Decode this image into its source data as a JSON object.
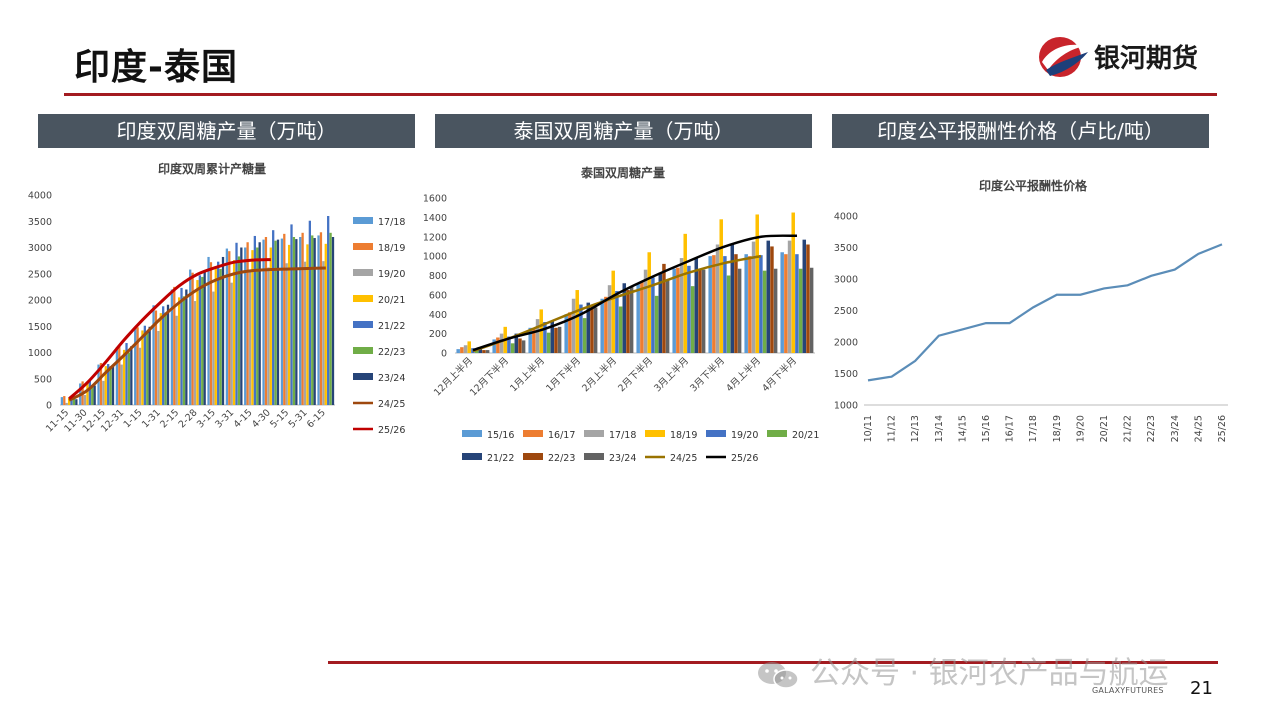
{
  "slide": {
    "title": "印度-泰国",
    "page_number": "21"
  },
  "logo": {
    "text": "银河期货",
    "small_text": "GALAXYFUTURES"
  },
  "watermark": {
    "text": "公众号 · 银河农产品与航运"
  },
  "panels": [
    {
      "header": "印度双周糖产量（万吨）"
    },
    {
      "header": "泰国双周糖产量（万吨）"
    },
    {
      "header": "印度公平报酬性价格（卢比/吨）"
    }
  ],
  "colors": {
    "accent_red": "#a31b20",
    "header_bg": "#4a5560"
  },
  "chart_data": [
    {
      "type": "bar",
      "title": "印度双周累计产糖量",
      "categories": [
        "11-15",
        "11-30",
        "12-15",
        "12-31",
        "1-15",
        "1-31",
        "2-15",
        "2-28",
        "3-15",
        "3-31",
        "4-15",
        "4-30",
        "5-15",
        "5-31",
        "6-15"
      ],
      "yticks": [
        "0",
        "500",
        "1000",
        "1500",
        "2000",
        "2500",
        "3000",
        "3500",
        "4000"
      ],
      "ylim": [
        0,
        4000
      ],
      "legend_position": "right",
      "series": [
        {
          "name": "17/18",
          "color": "#5b9bd5",
          "kind": "bar",
          "values": [
            150,
            410,
            770,
            1100,
            1470,
            1900,
            2200,
            2580,
            2820,
            2980,
            3000,
            3150,
            3170,
            3200,
            3230
          ]
        },
        {
          "name": "18/19",
          "color": "#ed7d31",
          "kind": "bar",
          "values": [
            170,
            450,
            800,
            1120,
            1480,
            1800,
            2250,
            2520,
            2720,
            2930,
            3100,
            3200,
            3260,
            3280,
            3290
          ]
        },
        {
          "name": "19/20",
          "color": "#a5a5a5",
          "kind": "bar",
          "values": [
            40,
            190,
            460,
            770,
            1090,
            1410,
            1700,
            1980,
            2160,
            2330,
            2550,
            2620,
            2700,
            2730,
            2740
          ]
        },
        {
          "name": "20/21",
          "color": "#ffc000",
          "kind": "bar",
          "values": [
            140,
            420,
            740,
            1050,
            1420,
            1750,
            2050,
            2380,
            2640,
            2760,
            2950,
            3000,
            3050,
            3060,
            3070
          ]
        },
        {
          "name": "21/22",
          "color": "#4472c4",
          "kind": "bar",
          "values": [
            160,
            470,
            780,
            1180,
            1510,
            1880,
            2230,
            2470,
            2730,
            3090,
            3220,
            3330,
            3440,
            3510,
            3600
          ]
        },
        {
          "name": "22/23",
          "color": "#70ad47",
          "kind": "bar",
          "values": [
            130,
            380,
            740,
            1000,
            1390,
            1760,
            2070,
            2440,
            2590,
            2830,
            3000,
            3130,
            3200,
            3230,
            3280
          ]
        },
        {
          "name": "23/24",
          "color": "#264478",
          "kind": "bar",
          "values": [
            110,
            370,
            740,
            1120,
            1490,
            1910,
            2200,
            2560,
            2820,
            3000,
            3100,
            3150,
            3160,
            3180,
            3200
          ]
        },
        {
          "name": "24/25",
          "color": "#9e480e",
          "kind": "line",
          "values": [
            90,
            280,
            620,
            950,
            1300,
            1650,
            1950,
            2200,
            2380,
            2500,
            2560,
            2580,
            2590,
            2600,
            2610
          ]
        },
        {
          "name": "25/26",
          "color": "#c00000",
          "kind": "line",
          "values": [
            120,
            430,
            820,
            1240,
            1620,
            1960,
            2270,
            2490,
            2620,
            2720,
            2760,
            2770,
            null,
            null,
            null
          ]
        }
      ]
    },
    {
      "type": "bar",
      "title": "泰国双周糖产量",
      "categories": [
        "12月上半月",
        "12月下半月",
        "1月上半月",
        "1月下半月",
        "2月上半月",
        "2月下半月",
        "3月上半月",
        "3月下半月",
        "4月上半月",
        "4月下半月"
      ],
      "yticks": [
        "0",
        "200",
        "400",
        "600",
        "800",
        "1000",
        "1200",
        "1400",
        "1600"
      ],
      "ylim": [
        0,
        1600
      ],
      "legend_position": "bottom",
      "series": [
        {
          "name": "15/16",
          "color": "#5b9bd5",
          "kind": "bar",
          "values": [
            40,
            140,
            260,
            400,
            560,
            720,
            870,
            1000,
            1020,
            1040
          ]
        },
        {
          "name": "16/17",
          "color": "#ed7d31",
          "kind": "bar",
          "values": [
            60,
            160,
            260,
            420,
            580,
            740,
            880,
            1010,
            1000,
            1020
          ]
        },
        {
          "name": "17/18",
          "color": "#a5a5a5",
          "kind": "bar",
          "values": [
            80,
            200,
            350,
            560,
            700,
            860,
            980,
            1120,
            1150,
            1160
          ]
        },
        {
          "name": "18/19",
          "color": "#ffc000",
          "kind": "bar",
          "values": [
            120,
            270,
            450,
            650,
            850,
            1040,
            1230,
            1380,
            1430,
            1450
          ]
        },
        {
          "name": "19/20",
          "color": "#4472c4",
          "kind": "bar",
          "values": [
            50,
            170,
            320,
            500,
            640,
            780,
            900,
            1000,
            1010,
            1020
          ]
        },
        {
          "name": "20/21",
          "color": "#70ad47",
          "kind": "bar",
          "values": [
            30,
            100,
            210,
            360,
            480,
            590,
            690,
            800,
            850,
            870
          ]
        },
        {
          "name": "21/22",
          "color": "#264478",
          "kind": "bar",
          "values": [
            60,
            200,
            330,
            520,
            720,
            830,
            980,
            1130,
            1160,
            1170
          ]
        },
        {
          "name": "22/23",
          "color": "#9e480e",
          "kind": "bar",
          "values": [
            30,
            150,
            260,
            480,
            650,
            920,
            860,
            1020,
            1100,
            1120
          ]
        },
        {
          "name": "23/24",
          "color": "#636363",
          "kind": "bar",
          "values": [
            30,
            130,
            270,
            470,
            690,
            750,
            860,
            870,
            870,
            880
          ]
        },
        {
          "name": "24/25",
          "color": "#997300",
          "kind": "line",
          "values": [
            20,
            150,
            300,
            450,
            580,
            700,
            830,
            930,
            1000,
            null
          ]
        },
        {
          "name": "25/26",
          "color": "#000000",
          "kind": "line",
          "values": [
            30,
            150,
            250,
            400,
            610,
            790,
            950,
            1100,
            1200,
            1210
          ]
        }
      ]
    },
    {
      "type": "line",
      "title": "印度公平报酬性价格",
      "categories": [
        "10/11",
        "11/12",
        "12/13",
        "13/14",
        "14/15",
        "15/16",
        "16/17",
        "17/18",
        "18/19",
        "19/20",
        "20/21",
        "21/22",
        "22/23",
        "23/24",
        "24/25",
        "25/26"
      ],
      "yticks": [
        "1000",
        "1500",
        "2000",
        "2500",
        "3000",
        "3500",
        "4000"
      ],
      "ylim": [
        1000,
        4000
      ],
      "series": [
        {
          "color": "#5b8db8",
          "values": [
            1391,
            1450,
            1700,
            2100,
            2200,
            2300,
            2300,
            2550,
            2750,
            2750,
            2850,
            2900,
            3050,
            3150,
            3400,
            3550
          ]
        }
      ]
    }
  ]
}
